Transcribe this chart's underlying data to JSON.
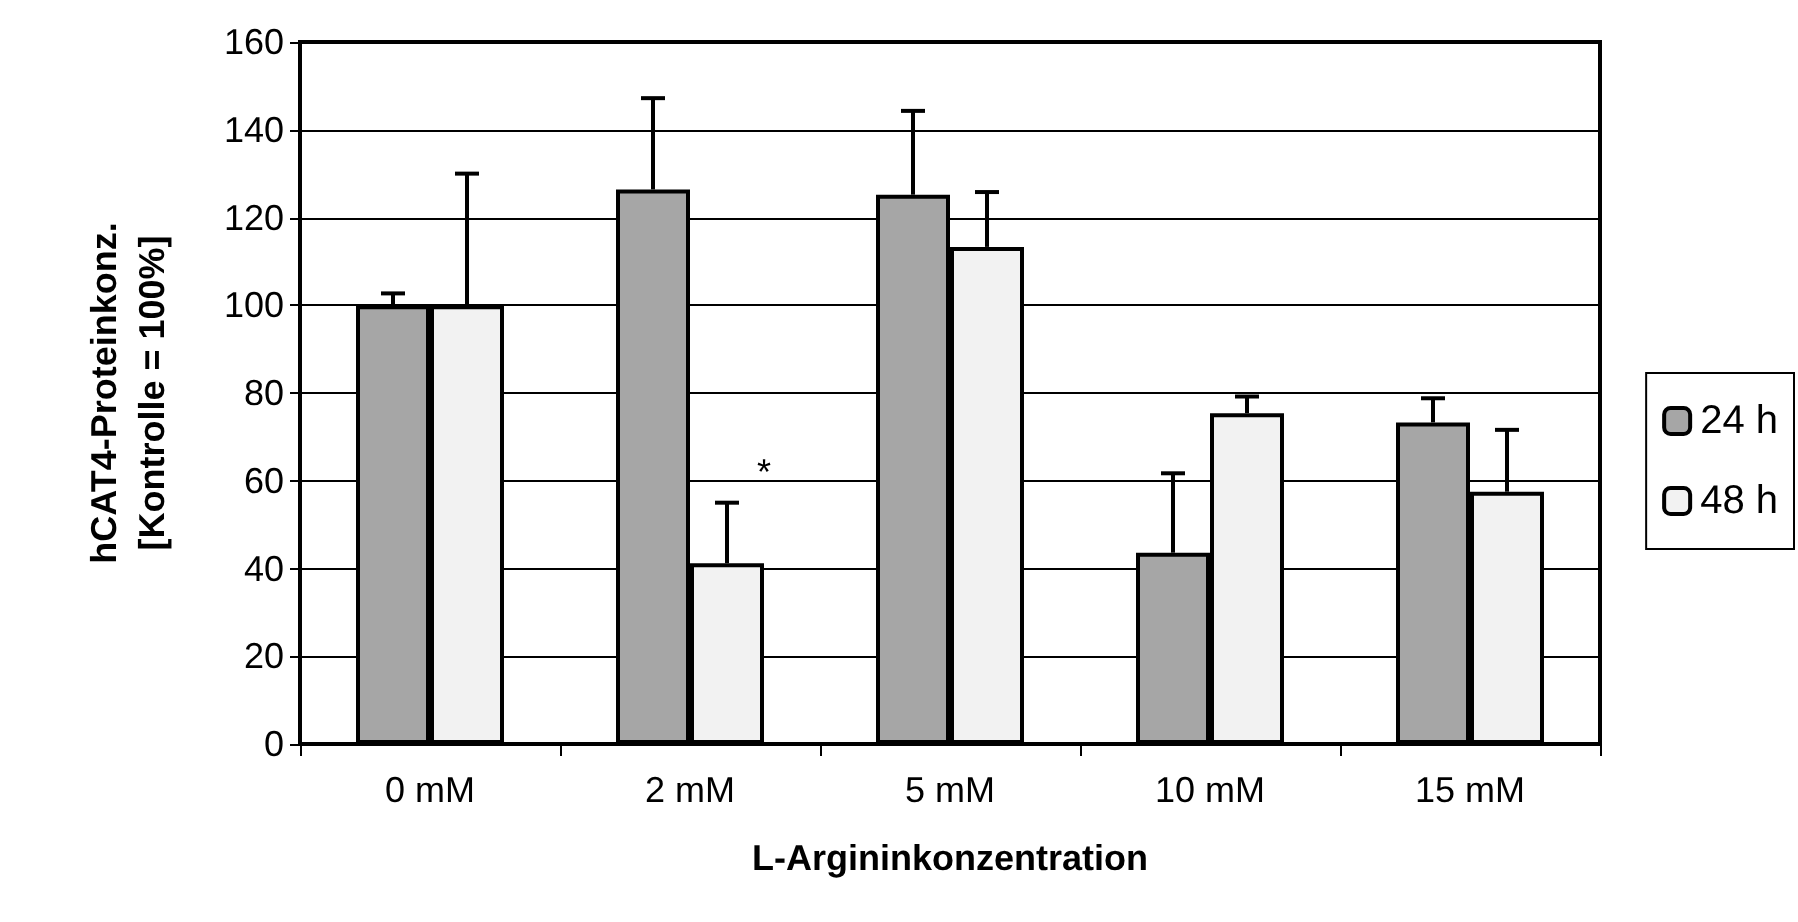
{
  "chart_data": {
    "type": "bar",
    "xlabel": "L-Argininkonzentration",
    "ylabel": "hCAT4-Proteinkonz.\n[Kontrolle = 100%]",
    "categories": [
      "0 mM",
      "2 mM",
      "5 mM",
      "10 mM",
      "15 mM"
    ],
    "series": [
      {
        "name": "24 h",
        "color": "#a6a6a6",
        "values": [
          100,
          126.4,
          125.2,
          43.6,
          73.3
        ],
        "errors": [
          [
            100,
            102.7
          ],
          [
            126.4,
            147.2
          ],
          [
            125.2,
            144.3
          ],
          [
            43.6,
            61.7
          ],
          [
            73.3,
            78.8
          ]
        ]
      },
      {
        "name": "48 h",
        "color": "#f2f2f2",
        "values": [
          100,
          41.2,
          113.3,
          75.4,
          57.5
        ],
        "errors": [
          [
            100,
            130
          ],
          [
            41.2,
            55
          ],
          [
            113.3,
            125.8
          ],
          [
            75.4,
            79.2
          ],
          [
            57.5,
            71.6
          ]
        ]
      }
    ],
    "annotations": [
      {
        "text": "*",
        "x": "2 mM",
        "y": 62
      }
    ],
    "ylim": [
      0,
      160
    ],
    "yticks": [
      0,
      20,
      40,
      60,
      80,
      100,
      120,
      140,
      160
    ],
    "grid": "y",
    "legend": "right"
  }
}
